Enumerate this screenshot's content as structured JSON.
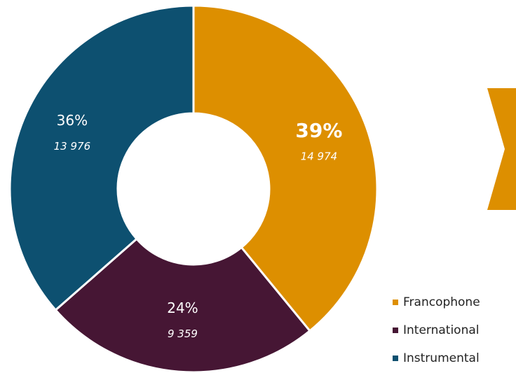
{
  "chart_data": {
    "type": "donut",
    "categories": [
      "Francophone",
      "International",
      "Instrumental"
    ],
    "values": [
      39,
      24,
      36
    ],
    "value_labels": [
      "39%",
      "24%",
      "36%"
    ],
    "counts": [
      14974,
      9359,
      13976
    ],
    "count_labels": [
      "14 974",
      "9 359",
      "13 976"
    ],
    "colors": [
      "#dd8f00",
      "#461634",
      "#0d5070"
    ],
    "legend": "bottom-right"
  }
}
